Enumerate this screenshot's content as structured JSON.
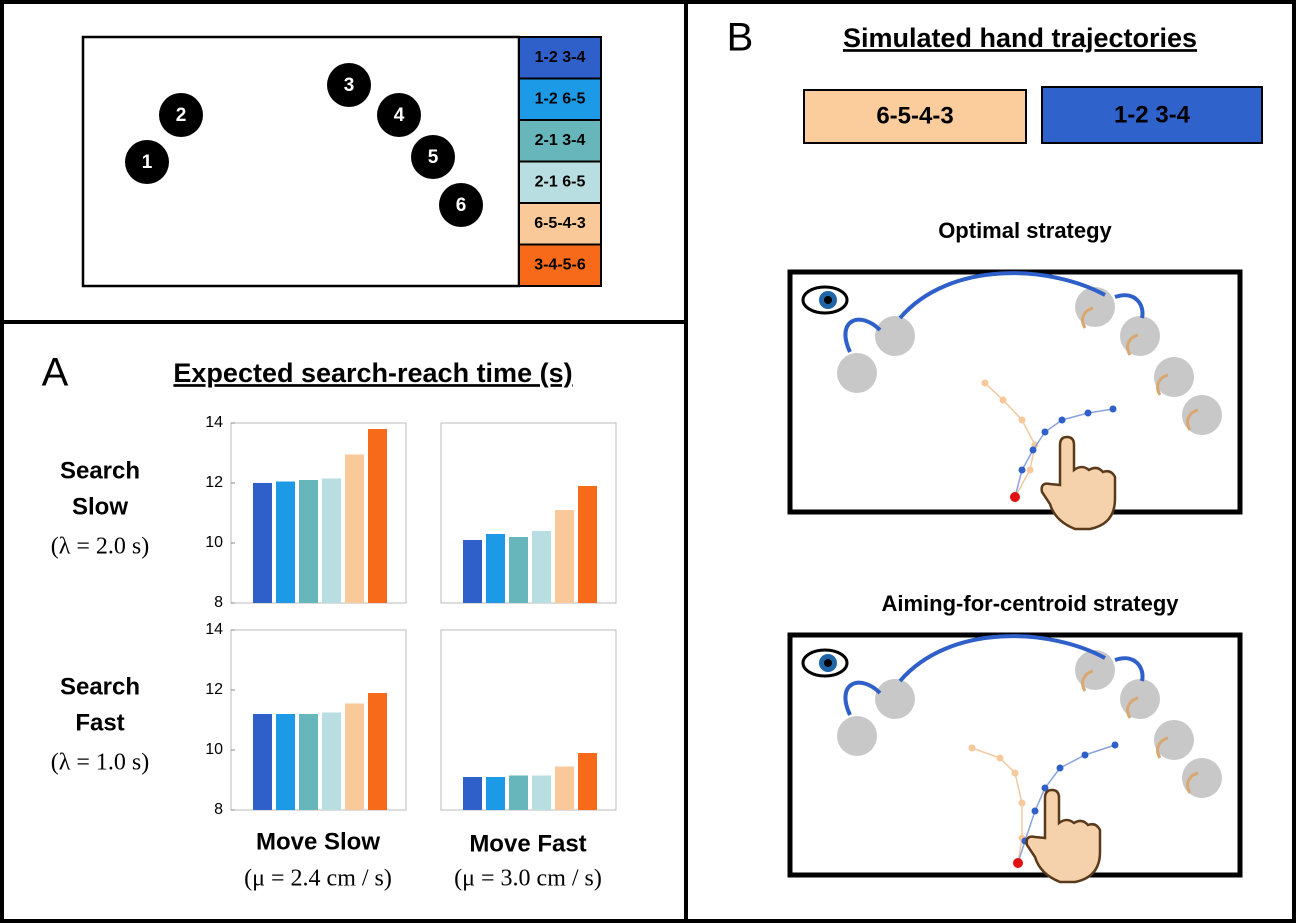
{
  "sequences": [
    {
      "name": "1-2 3-4",
      "color": "#2f5fc8"
    },
    {
      "name": "1-2 6-5",
      "color": "#1c9ae6"
    },
    {
      "name": "2-1 3-4",
      "color": "#66b6bb"
    },
    {
      "name": "2-1 6-5",
      "color": "#b9dee1"
    },
    {
      "name": "6-5-4-3",
      "color": "#f9c999"
    },
    {
      "name": "3-4-5-6",
      "color": "#f76a1a"
    }
  ],
  "targets": [
    "1",
    "2",
    "3",
    "4",
    "5",
    "6"
  ],
  "panel_a": {
    "letter": "A",
    "title": "Expected search-reach time (s)",
    "rows": [
      {
        "label": "Search",
        "label2": "Slow",
        "param": "(λ = 2.0 s)"
      },
      {
        "label": "Search",
        "label2": "Fast",
        "param": "(λ = 1.0 s)"
      }
    ],
    "columns": [
      {
        "label": "Move Slow",
        "param": "(μ = 2.4 cm / s)"
      },
      {
        "label": "Move Fast",
        "param": "(μ = 3.0 cm / s)"
      }
    ]
  },
  "panel_b": {
    "letter": "B",
    "title": "Simulated hand trajectories",
    "legend": [
      {
        "name": "6-5-4-3",
        "color": "#fbcc9c"
      },
      {
        "name": "1-2 3-4",
        "color": "#3062cc"
      }
    ],
    "strategies": [
      "Optimal strategy",
      "Aiming-for-centroid strategy"
    ]
  },
  "chart_data": [
    {
      "type": "bar",
      "values": [
        12.0,
        12.05,
        12.1,
        12.15,
        12.95,
        13.8
      ],
      "ylim": [
        8,
        14
      ],
      "yticks": [
        8,
        10,
        12,
        14
      ]
    },
    {
      "type": "bar",
      "values": [
        10.1,
        10.3,
        10.2,
        10.4,
        11.1,
        11.9
      ],
      "ylim": [
        8,
        14
      ]
    },
    {
      "type": "bar",
      "values": [
        11.2,
        11.2,
        11.2,
        11.25,
        11.55,
        11.9
      ],
      "ylim": [
        8,
        14
      ],
      "yticks": [
        8,
        10,
        12,
        14
      ]
    },
    {
      "type": "bar",
      "values": [
        9.1,
        9.1,
        9.15,
        9.15,
        9.45,
        9.9
      ],
      "ylim": [
        8,
        14
      ]
    }
  ]
}
